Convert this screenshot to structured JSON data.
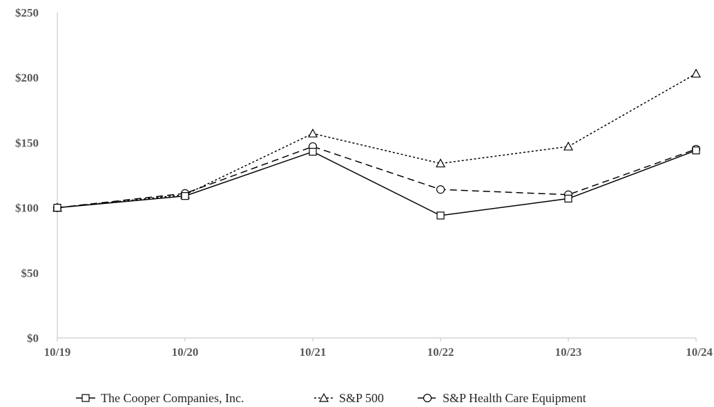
{
  "chart_data": {
    "type": "line",
    "categories": [
      "10/19",
      "10/20",
      "10/21",
      "10/22",
      "10/23",
      "10/24"
    ],
    "ylim": [
      0,
      250
    ],
    "yticks": [
      0,
      50,
      100,
      150,
      200,
      250
    ],
    "ytick_labels": [
      "$0",
      "$50",
      "$100",
      "$150",
      "$200",
      "$250"
    ],
    "grid": false,
    "legend_position": "bottom",
    "series": [
      {
        "name": "The Cooper Companies, Inc.",
        "marker": "square",
        "dash": "solid",
        "values": [
          100,
          109,
          143,
          94,
          107,
          144
        ]
      },
      {
        "name": "S&P 500",
        "marker": "triangle",
        "dash": "dotted",
        "values": [
          100,
          110,
          157,
          134,
          147,
          203
        ]
      },
      {
        "name": "S&P Health Care Equipment",
        "marker": "circle",
        "dash": "dashed",
        "values": [
          100,
          111,
          147,
          114,
          110,
          145
        ]
      }
    ],
    "colors": {
      "line": "#000000",
      "axis": "#bfbfbf",
      "text": "#595959"
    }
  }
}
